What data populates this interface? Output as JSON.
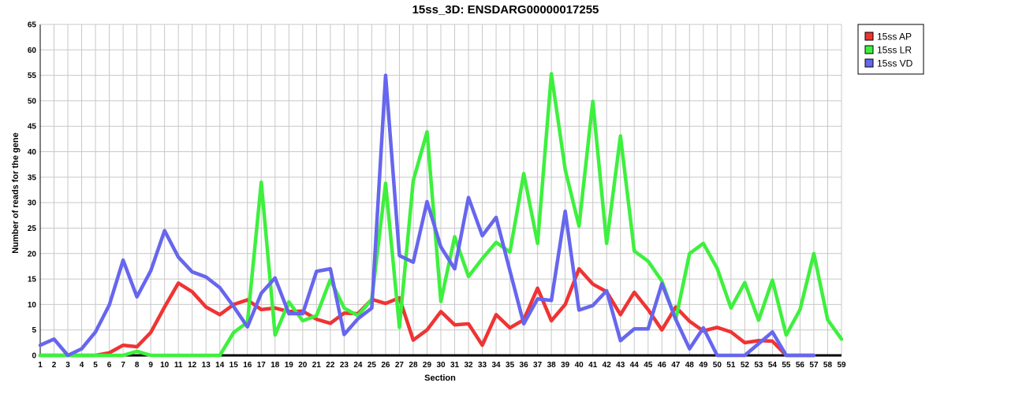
{
  "chart_data": {
    "type": "line",
    "title": "15ss_3D: ENSDARG00000017255",
    "xlabel": "Section",
    "ylabel": "Number of reads for the gene",
    "ylim": [
      0,
      65
    ],
    "ytick_step": 5,
    "grid": true,
    "legend_position": "top-right-outside",
    "x": [
      1,
      2,
      3,
      4,
      5,
      6,
      7,
      8,
      9,
      10,
      11,
      12,
      13,
      14,
      15,
      16,
      17,
      18,
      19,
      20,
      21,
      22,
      23,
      24,
      25,
      26,
      27,
      28,
      29,
      30,
      31,
      32,
      33,
      34,
      35,
      36,
      37,
      38,
      39,
      40,
      41,
      42,
      43,
      44,
      45,
      46,
      47,
      48,
      49,
      50,
      51,
      52,
      53,
      54,
      55,
      56,
      57,
      58,
      59
    ],
    "series": [
      {
        "name": "15ss AP",
        "color": "#ef3434",
        "values": [
          0,
          0,
          0,
          0,
          0,
          0.5,
          2,
          1.7,
          4.5,
          9.5,
          14.2,
          12.5,
          9.5,
          8,
          10,
          10.9,
          9,
          9.3,
          8.6,
          8.7,
          7.1,
          6.3,
          8.3,
          8.2,
          11,
          10.2,
          11.3,
          3,
          5,
          8.6,
          6,
          6.2,
          2,
          8,
          5.4,
          7,
          13.2,
          6.8,
          10,
          17,
          14,
          12.5,
          8,
          12.4,
          9,
          5,
          9.5,
          6.7,
          4.8,
          5.5,
          4.6,
          2.5,
          2.9,
          2.8,
          0,
          0,
          0,
          null,
          null
        ]
      },
      {
        "name": "15ss LR",
        "color": "#3ef03e",
        "values": [
          0,
          0,
          0,
          0,
          0,
          0,
          0,
          0.8,
          0,
          0,
          0,
          0,
          0,
          0,
          4.5,
          6.5,
          34,
          4,
          10.5,
          6.8,
          7.8,
          14.9,
          9.3,
          7.8,
          11,
          33.8,
          5.5,
          34.3,
          43.9,
          10.6,
          23.3,
          15.5,
          19,
          22.2,
          20.3,
          35.7,
          22,
          55.3,
          36.5,
          25.4,
          49.9,
          22,
          43.1,
          20.5,
          18.5,
          14.6,
          7,
          20,
          22,
          17.1,
          9.3,
          14.3,
          6.9,
          14.8,
          4,
          9,
          20,
          7,
          3.2
        ]
      },
      {
        "name": "15ss VD",
        "color": "#6666ee",
        "values": [
          2,
          3.2,
          0,
          1.3,
          4.6,
          9.9,
          18.7,
          11.5,
          16.6,
          24.5,
          19.3,
          16.4,
          15.4,
          13.3,
          9.6,
          5.6,
          12.2,
          15.2,
          8.2,
          8.2,
          16.5,
          17,
          4.1,
          7.2,
          9.3,
          55,
          19.6,
          18.3,
          30.2,
          21.3,
          17,
          31,
          23.5,
          27.1,
          16.6,
          6.2,
          11.1,
          10.8,
          28.3,
          8.9,
          9.8,
          12.7,
          2.9,
          5.2,
          5.2,
          14.1,
          7.1,
          1.3,
          5.4,
          0,
          0,
          0,
          2.3,
          4.6,
          0,
          0,
          0,
          null,
          null
        ]
      }
    ]
  }
}
